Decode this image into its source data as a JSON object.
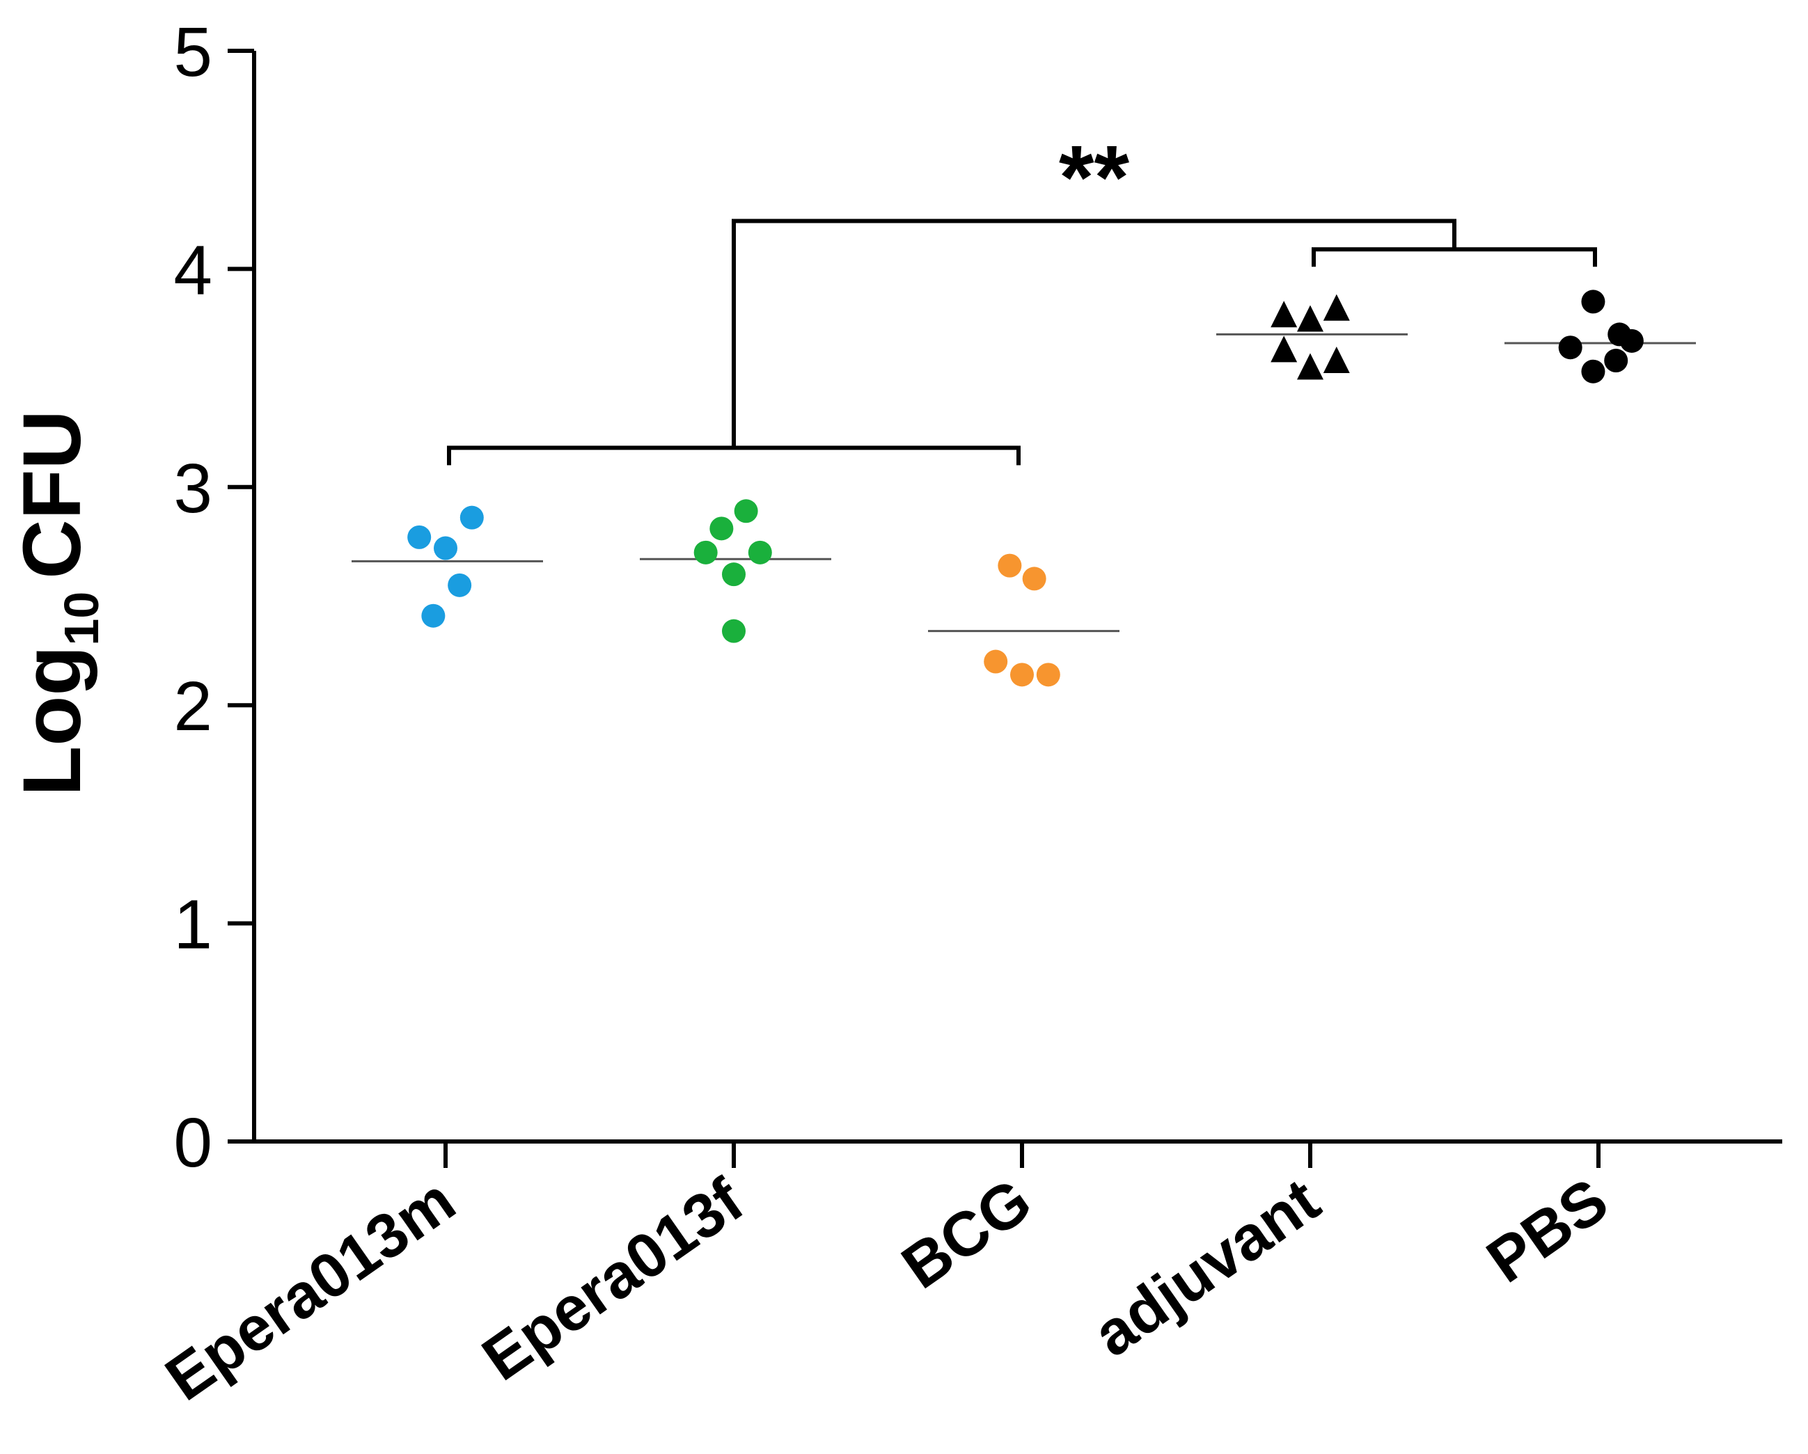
{
  "chart_data": {
    "type": "scatter",
    "ylabel": {
      "base": "Log",
      "subscript": "10",
      "unit": "CFU"
    },
    "ylim": [
      0,
      5
    ],
    "yticks": [
      0,
      1,
      2,
      3,
      4,
      5
    ],
    "categories": [
      "Epera013m",
      "Epera013f",
      "BCG",
      "adjuvant",
      "PBS"
    ],
    "series": [
      {
        "name": "Epera013m",
        "color": "#1a9de0",
        "marker": "circle",
        "median": 2.66,
        "points": [
          {
            "offset": -0.15,
            "value": 2.77
          },
          {
            "offset": 0.0,
            "value": 2.72
          },
          {
            "offset": 0.15,
            "value": 2.86
          },
          {
            "offset": 0.08,
            "value": 2.55
          },
          {
            "offset": -0.07,
            "value": 2.41
          }
        ]
      },
      {
        "name": "Epera013f",
        "color": "#1ab03c",
        "marker": "circle",
        "median": 2.67,
        "points": [
          {
            "offset": -0.16,
            "value": 2.7
          },
          {
            "offset": -0.07,
            "value": 2.81
          },
          {
            "offset": 0.07,
            "value": 2.89
          },
          {
            "offset": 0.15,
            "value": 2.7
          },
          {
            "offset": 0.0,
            "value": 2.6
          },
          {
            "offset": 0.0,
            "value": 2.34
          }
        ]
      },
      {
        "name": "BCG",
        "color": "#f7952f",
        "marker": "circle",
        "median": 2.34,
        "points": [
          {
            "offset": -0.07,
            "value": 2.64
          },
          {
            "offset": 0.07,
            "value": 2.58
          },
          {
            "offset": -0.15,
            "value": 2.2
          },
          {
            "offset": 0.0,
            "value": 2.14
          },
          {
            "offset": 0.15,
            "value": 2.14
          }
        ]
      },
      {
        "name": "adjuvant",
        "color": "#000000",
        "marker": "triangle",
        "median": 3.7,
        "points": [
          {
            "offset": -0.15,
            "value": 3.79
          },
          {
            "offset": 0.0,
            "value": 3.77
          },
          {
            "offset": 0.15,
            "value": 3.82
          },
          {
            "offset": -0.15,
            "value": 3.63
          },
          {
            "offset": 0.0,
            "value": 3.55
          },
          {
            "offset": 0.15,
            "value": 3.58
          }
        ]
      },
      {
        "name": "PBS",
        "color": "#000000",
        "marker": "circle",
        "median": 3.66,
        "points": [
          {
            "offset": -0.03,
            "value": 3.85
          },
          {
            "offset": -0.16,
            "value": 3.64
          },
          {
            "offset": -0.03,
            "value": 3.53
          },
          {
            "offset": 0.1,
            "value": 3.58
          },
          {
            "offset": 0.12,
            "value": 3.7
          },
          {
            "offset": 0.19,
            "value": 3.67
          }
        ]
      }
    ],
    "brackets": {
      "left_group": {
        "from": 0,
        "to": 2,
        "y": 3.18
      },
      "right_group": {
        "from": 3,
        "to": 4,
        "y": 4.09
      },
      "connector": {
        "y": 4.22
      },
      "label": "**"
    }
  }
}
